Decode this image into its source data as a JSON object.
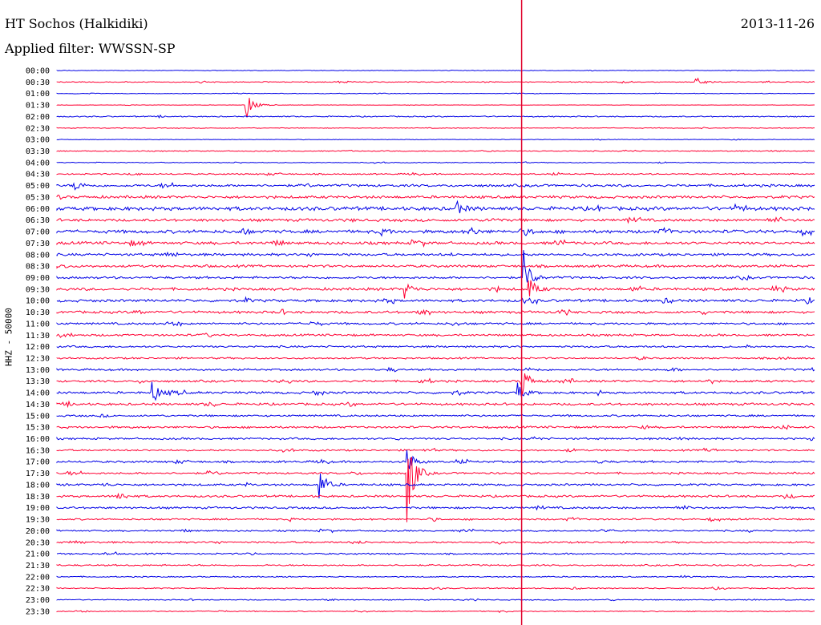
{
  "header": {
    "station": "HT Sochos (Halkidiki)",
    "date": "2013-11-26",
    "filter": "Applied filter: WWSSN-SP"
  },
  "colors": {
    "trace_a": "#0000e6",
    "trace_b": "#ff0033",
    "marker": "#e0002a"
  },
  "chart_data": {
    "type": "line",
    "ylabel": "HHZ - 50000",
    "row_labels": [
      "00:00",
      "00:30",
      "01:00",
      "01:30",
      "02:00",
      "02:30",
      "03:00",
      "03:30",
      "04:00",
      "04:30",
      "05:00",
      "05:30",
      "06:00",
      "06:30",
      "07:00",
      "07:30",
      "08:00",
      "08:30",
      "09:00",
      "09:30",
      "10:00",
      "10:30",
      "11:00",
      "11:30",
      "12:00",
      "12:30",
      "13:00",
      "13:30",
      "14:00",
      "14:30",
      "15:00",
      "15:30",
      "16:00",
      "16:30",
      "17:00",
      "17:30",
      "18:00",
      "18:30",
      "19:00",
      "19:30",
      "20:00",
      "20:30",
      "21:00",
      "21:30",
      "22:00",
      "22:30",
      "23:00",
      "23:30"
    ],
    "row_noise": [
      0.3,
      0.5,
      0.3,
      0.2,
      0.6,
      0.4,
      0.3,
      0.5,
      0.4,
      0.7,
      1.3,
      1.4,
      1.9,
      1.4,
      1.7,
      1.5,
      1.3,
      1.3,
      1.2,
      1.4,
      1.4,
      1.3,
      1.1,
      1.1,
      1.0,
      0.9,
      1.0,
      1.1,
      1.2,
      1.2,
      1.0,
      1.1,
      1.0,
      0.9,
      1.1,
      1.0,
      1.1,
      1.1,
      1.1,
      0.9,
      0.8,
      0.9,
      0.8,
      0.8,
      0.6,
      0.6,
      0.5,
      0.5
    ],
    "events": [
      {
        "row": 3,
        "minute": 7.5,
        "amp": 18
      },
      {
        "row": 1,
        "minute": 25.3,
        "amp": 8
      },
      {
        "row": 18,
        "minute": 18.5,
        "amp": 30
      },
      {
        "row": 19,
        "minute": 18.7,
        "amp": 14
      },
      {
        "row": 27,
        "minute": 18.4,
        "amp": 22
      },
      {
        "row": 28,
        "minute": 3.8,
        "amp": 14
      },
      {
        "row": 28,
        "minute": 18.2,
        "amp": 14
      },
      {
        "row": 34,
        "minute": 13.9,
        "amp": 14
      },
      {
        "row": 35,
        "minute": 13.9,
        "amp": 60
      },
      {
        "row": 36,
        "minute": 10.4,
        "amp": 20
      },
      {
        "row": 37,
        "minute": 2.4,
        "amp": 8
      },
      {
        "row": 19,
        "minute": 13.8,
        "amp": 9
      },
      {
        "row": 12,
        "minute": 15.8,
        "amp": 9
      },
      {
        "row": 14,
        "minute": 16.3,
        "amp": 7
      },
      {
        "row": 10,
        "minute": 0.7,
        "amp": 7
      }
    ],
    "marker_minute": 18.4
  }
}
